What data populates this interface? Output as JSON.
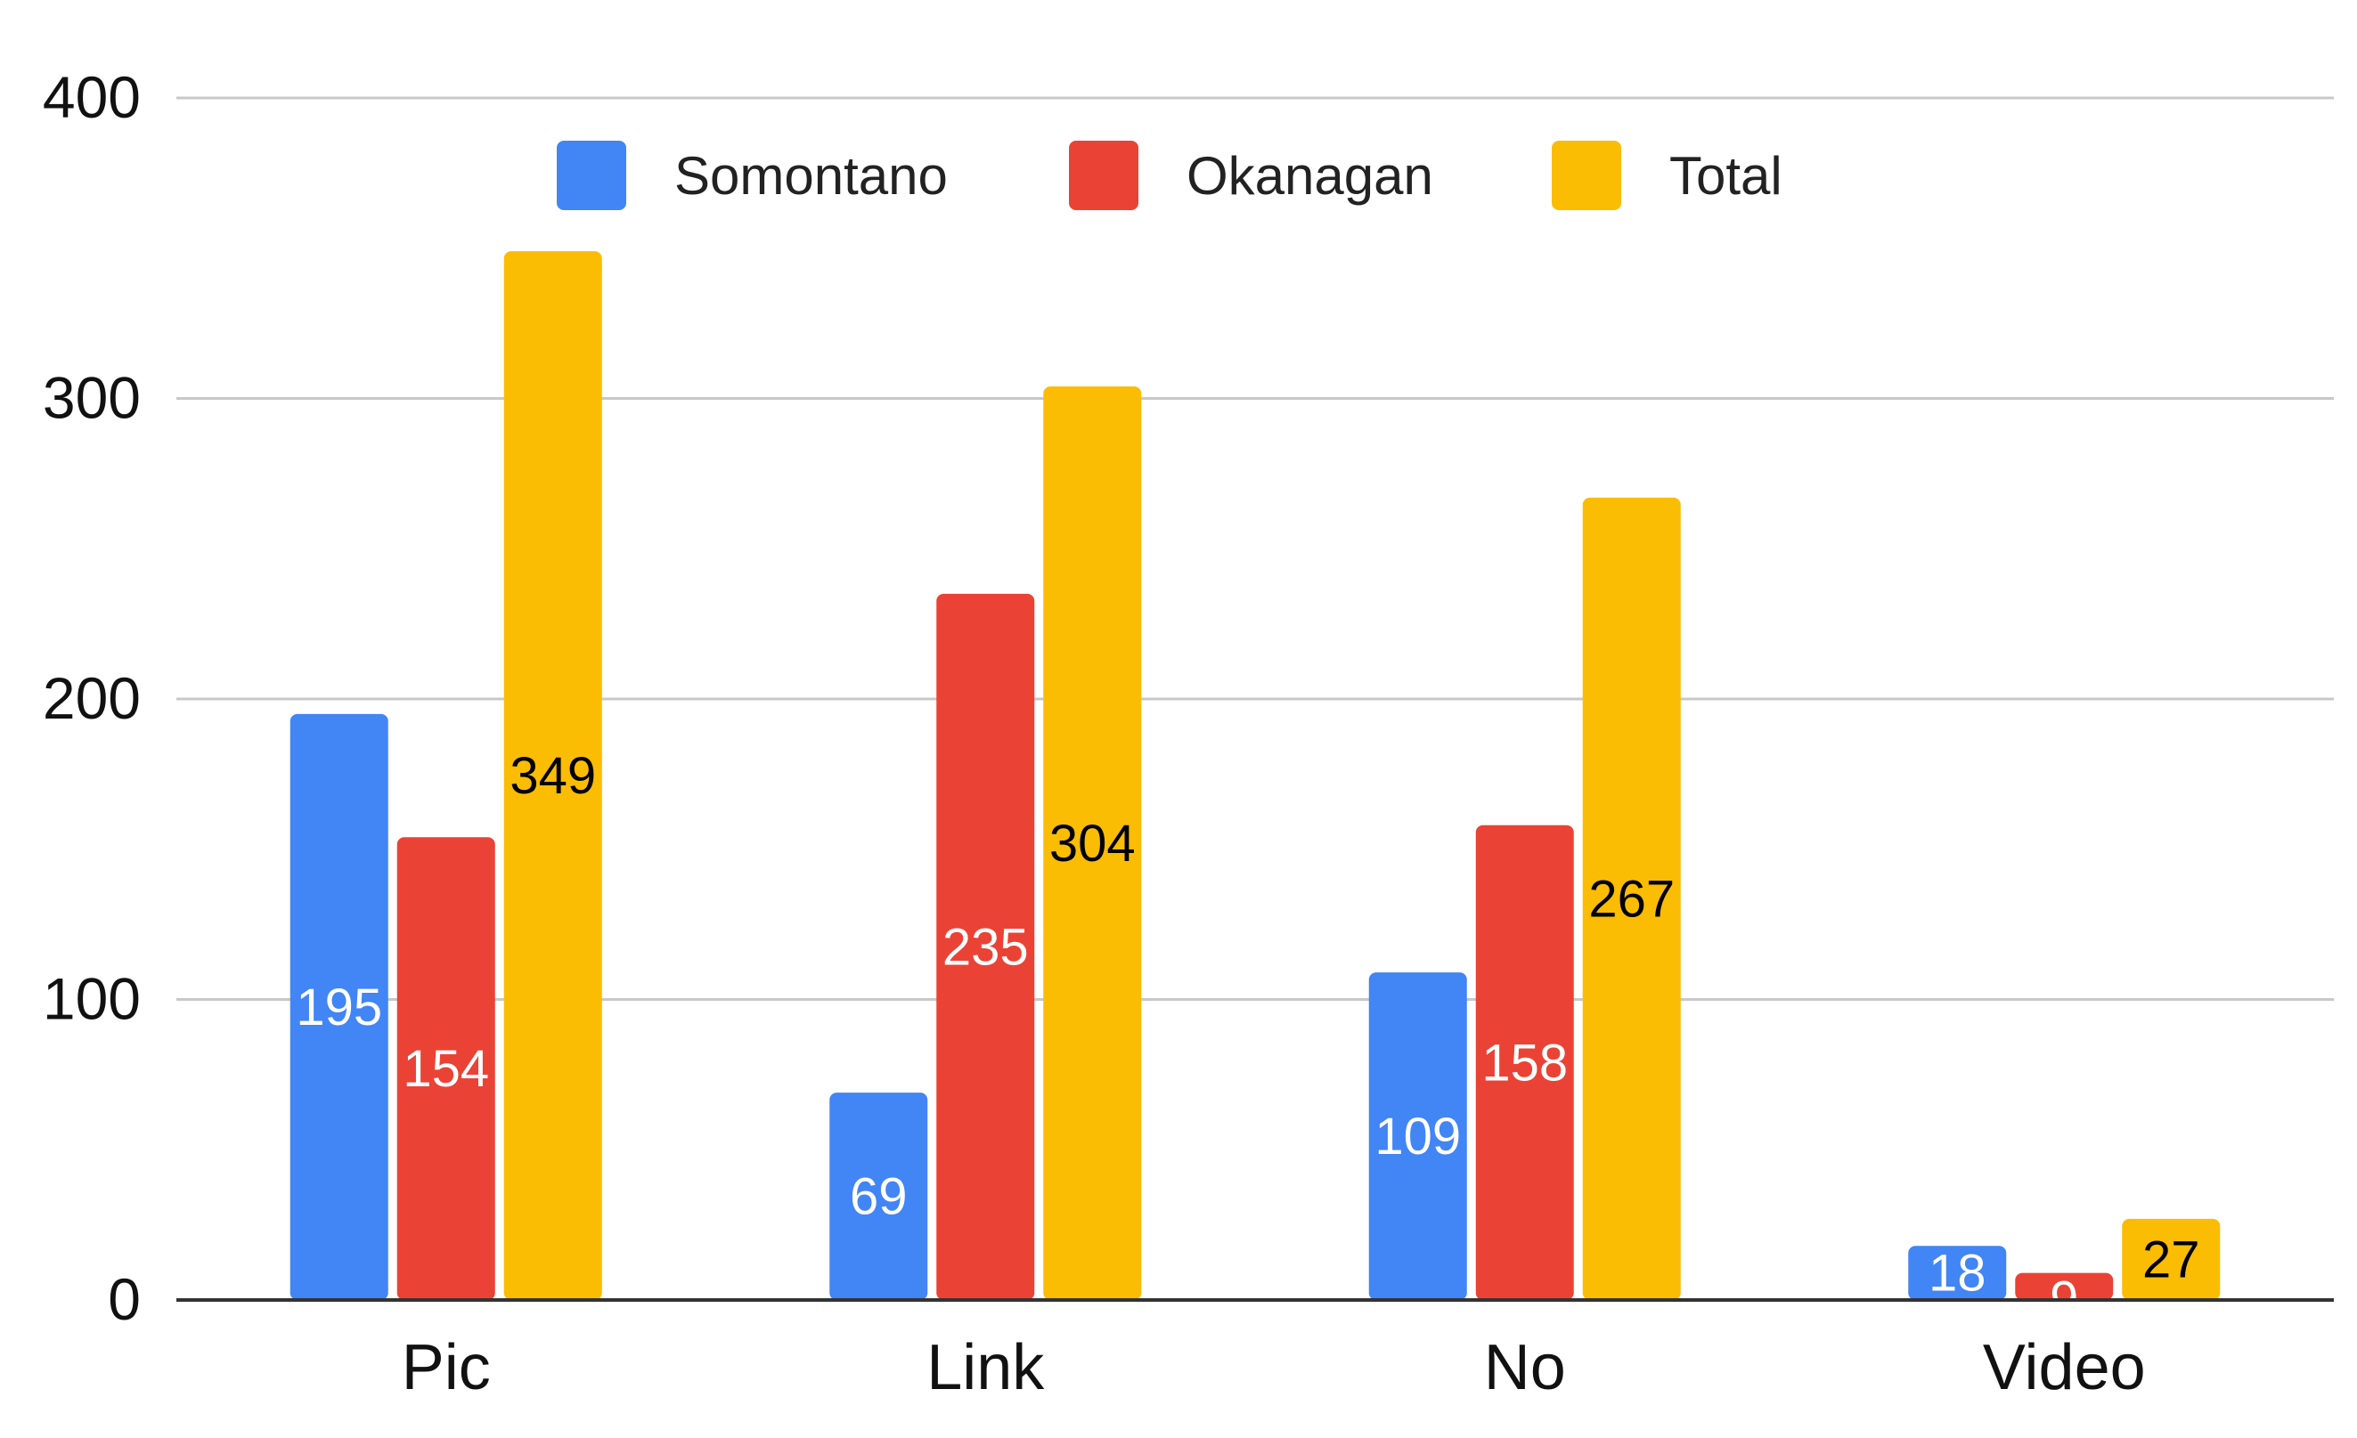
{
  "chart_data": {
    "type": "bar",
    "title": "",
    "xlabel": "",
    "ylabel": "",
    "categories": [
      "Pic",
      "Link",
      "No",
      "Video"
    ],
    "series": [
      {
        "name": "Somontano",
        "values": [
          195,
          69,
          109,
          18
        ],
        "color": "#4285F4",
        "label_color": "#ffffff"
      },
      {
        "name": "Okanagan",
        "values": [
          154,
          235,
          158,
          9
        ],
        "color": "#EA4335",
        "label_color": "#ffffff"
      },
      {
        "name": "Total",
        "values": [
          349,
          304,
          267,
          27
        ],
        "color": "#FBBC04",
        "label_color": "#000000"
      }
    ],
    "ylim": [
      0,
      400
    ],
    "yticks": [
      "0",
      "100",
      "200",
      "300",
      "400"
    ],
    "grid": true,
    "legend_position": "top-center",
    "data_labels": true
  }
}
